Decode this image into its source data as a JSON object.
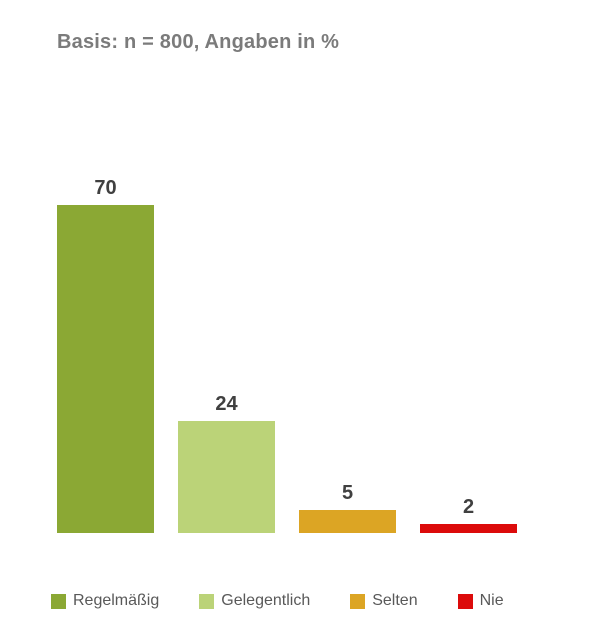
{
  "title": "Basis: n = 800, Angaben in %",
  "chart_data": {
    "type": "bar",
    "categories": [
      "Regelmäßig",
      "Gelegentlich",
      "Selten",
      "Nie"
    ],
    "values": [
      70,
      24,
      5,
      2
    ],
    "value_labels": [
      "70",
      "24",
      "5",
      "2"
    ],
    "colors": [
      "#8ba834",
      "#bbd378",
      "#dca524",
      "#dc0b0b"
    ],
    "title": "Basis: n = 800, Angaben in %",
    "xlabel": "",
    "ylabel": "",
    "ylim": [
      0,
      74
    ],
    "grid": false,
    "axes_visible": false,
    "legend_position": "bottom",
    "legend_entries": [
      "Regelmäßig",
      "Gelegentlich",
      "Selten",
      "Nie"
    ]
  },
  "colors": {
    "background": "#ffffff",
    "title_text": "#7b7b7b",
    "value_label_text": "#404040",
    "legend_text": "#595959"
  }
}
